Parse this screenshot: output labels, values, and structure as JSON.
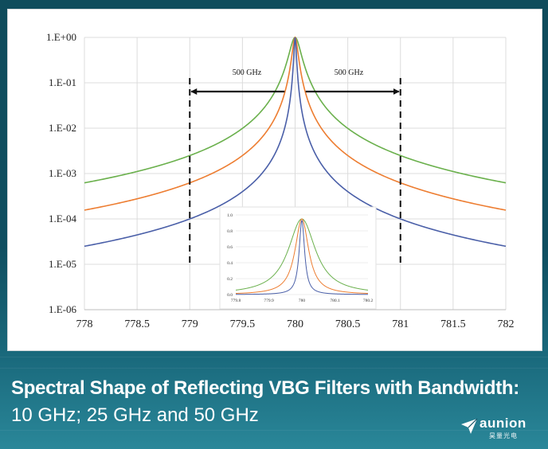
{
  "caption": {
    "line1": "Spectral Shape of Reflecting VBG Filters with Bandwidth:",
    "line2": "10 GHz; 25 GHz and 50 GHz"
  },
  "logo": {
    "name": "aunion",
    "subtitle": "昊量光电",
    "icon": "paper-plane-icon"
  },
  "colors": {
    "series_50": "#6ab04c",
    "series_25": "#ed7d31",
    "series_10": "#4a5fa8",
    "background": "#0f4c5c"
  },
  "chart_data": [
    {
      "type": "line",
      "title": "",
      "xlabel": "",
      "ylabel": "",
      "xlim": [
        778,
        782
      ],
      "ylim": [
        1e-06,
        1
      ],
      "yscale": "log",
      "grid": true,
      "x_ticks": [
        "778",
        "778.5",
        "779",
        "779.5",
        "780",
        "780.5",
        "781",
        "781.5",
        "782"
      ],
      "y_ticks": [
        "1.E+00",
        "1.E-01",
        "1.E-02",
        "1.E-03",
        "1.E-04",
        "1.E-05",
        "1.E-06"
      ],
      "center": 780,
      "series": [
        {
          "fwhm_ghz": 50,
          "color": "#6ab04c",
          "points": [
            [
              778,
              0.000155
            ],
            [
              779,
              0.00062
            ],
            [
              779.5,
              0.0025
            ],
            [
              779.9,
              0.06
            ],
            [
              780,
              1
            ],
            [
              780.1,
              0.06
            ],
            [
              780.5,
              0.0025
            ],
            [
              781,
              0.00062
            ],
            [
              782,
              0.000155
            ]
          ]
        },
        {
          "fwhm_ghz": 25,
          "color": "#ed7d31",
          "points": [
            [
              778,
              3.5e-05
            ],
            [
              779,
              0.00014
            ],
            [
              779.5,
              0.00056
            ],
            [
              779.9,
              0.014
            ],
            [
              780,
              1
            ],
            [
              780.1,
              0.014
            ],
            [
              780.5,
              0.00056
            ],
            [
              781,
              0.00014
            ],
            [
              782,
              3.5e-05
            ]
          ]
        },
        {
          "fwhm_ghz": 10,
          "color": "#4a5fa8",
          "points": [
            [
              778,
              6.6e-06
            ],
            [
              779,
              2.6e-05
            ],
            [
              779.5,
              0.00011
            ],
            [
              779.9,
              0.0026
            ],
            [
              780,
              1
            ],
            [
              780.1,
              0.0026
            ],
            [
              780.5,
              0.00011
            ],
            [
              781,
              2.6e-05
            ],
            [
              782,
              6.6e-06
            ]
          ]
        }
      ],
      "annotations": [
        {
          "text": "500 GHz",
          "from_x": 779,
          "to_x": 780
        },
        {
          "text": "500 GHz",
          "from_x": 780,
          "to_x": 781
        }
      ],
      "markers": [
        779,
        781
      ]
    },
    {
      "type": "line",
      "title": "",
      "xlim": [
        779.8,
        780.2
      ],
      "ylim": [
        0,
        1
      ],
      "yscale": "linear",
      "grid": true,
      "x_ticks": [
        "779.8",
        "779.9",
        "780",
        "780.1",
        "780.2"
      ],
      "y_ticks": [
        "1.0",
        "0.8",
        "0.6",
        "0.4",
        "0.2",
        "0.0"
      ],
      "series": [
        {
          "fwhm_ghz": 50,
          "color": "#6ab04c",
          "peak": 0.95
        },
        {
          "fwhm_ghz": 25,
          "color": "#ed7d31",
          "peak": 0.95
        },
        {
          "fwhm_ghz": 10,
          "color": "#4a5fa8",
          "peak": 0.93
        }
      ]
    }
  ]
}
